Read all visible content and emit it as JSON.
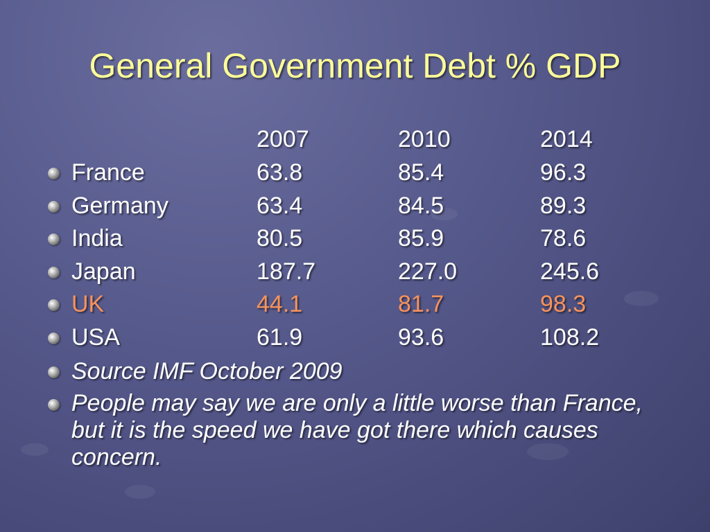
{
  "header": {
    "title": "General Government Debt % GDP"
  },
  "table": {
    "columns": [
      "2007",
      "2010",
      "2014"
    ],
    "rows": [
      {
        "label": "France",
        "values": [
          "63.8",
          "85.4",
          "96.3"
        ]
      },
      {
        "label": "Germany",
        "values": [
          "63.4",
          "84.5",
          "89.3"
        ]
      },
      {
        "label": "India",
        "values": [
          "80.5",
          "85.9",
          "78.6"
        ]
      },
      {
        "label": "Japan",
        "values": [
          "187.7",
          "227.0",
          "245.6"
        ]
      },
      {
        "label": "UK",
        "values": [
          "44.1",
          "81.7",
          "98.3"
        ],
        "highlight": true
      },
      {
        "label": "USA",
        "values": [
          "61.9",
          "93.6",
          "108.2"
        ]
      }
    ]
  },
  "notes": [
    "Source IMF October 2009",
    "People may say we are only a little worse than France, but it is the speed we have got there which causes concern."
  ]
}
